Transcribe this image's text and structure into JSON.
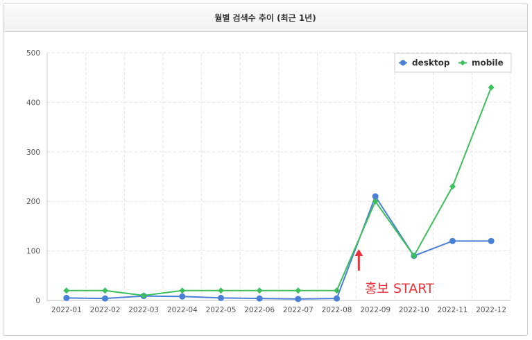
{
  "panel": {
    "title": "월별 검색수 추이 (최근 1년)"
  },
  "colors": {
    "desktop": "#4a7fd6",
    "mobile": "#3dbf5c",
    "annotation": "#e8333a",
    "grid": "#e3e3e3"
  },
  "chart_data": {
    "type": "line",
    "title": "월별 검색수 추이 (최근 1년)",
    "categories": [
      "2022-01",
      "2022-02",
      "2022-03",
      "2022-04",
      "2022-05",
      "2022-06",
      "2022-07",
      "2022-08",
      "2022-09",
      "2022-10",
      "2022-11",
      "2022-12"
    ],
    "series": [
      {
        "name": "desktop",
        "values": [
          5,
          4,
          9,
          8,
          5,
          4,
          3,
          4,
          210,
          90,
          120,
          120
        ]
      },
      {
        "name": "mobile",
        "values": [
          20,
          20,
          10,
          20,
          20,
          20,
          20,
          20,
          200,
          90,
          230,
          430
        ]
      }
    ],
    "ylim": [
      0,
      500
    ],
    "yticks": [
      0,
      100,
      200,
      300,
      400,
      500
    ],
    "grid": true,
    "legend": "top-right",
    "annotation": {
      "text": "홍보 START",
      "arrow": "up",
      "between": [
        "2022-08",
        "2022-09"
      ]
    }
  }
}
